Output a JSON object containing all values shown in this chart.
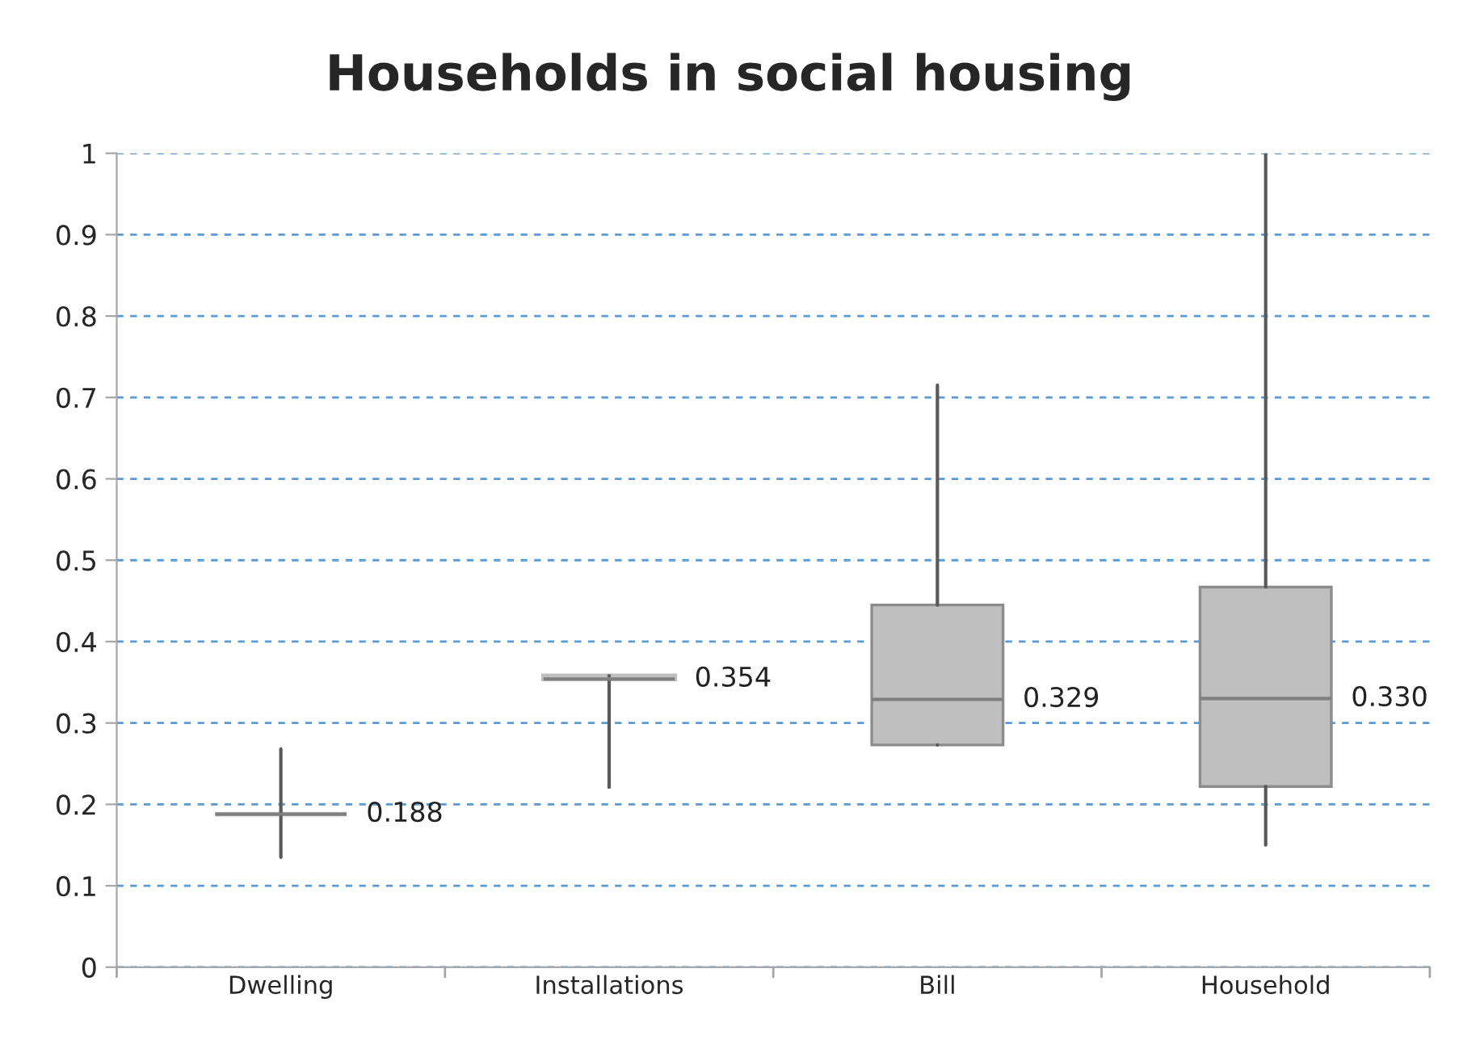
{
  "chart_data": {
    "type": "box",
    "title": "Households in social housing",
    "categories": [
      "Dwelling",
      "Installations",
      "Bill",
      "Household"
    ],
    "boxes": [
      {
        "low": 0.135,
        "q1": 0.188,
        "median": 0.188,
        "q3": 0.188,
        "high": 0.268
      },
      {
        "low": 0.221,
        "q1": 0.354,
        "median": 0.354,
        "q3": 0.358,
        "high": 0.358
      },
      {
        "low": 0.273,
        "q1": 0.273,
        "median": 0.329,
        "q3": 0.445,
        "high": 0.715
      },
      {
        "low": 0.15,
        "q1": 0.222,
        "median": 0.33,
        "q3": 0.467,
        "high": 1.0
      }
    ],
    "value_labels": [
      "0.188",
      "0.354",
      "0.329",
      "0.330"
    ],
    "color": "#bfbfbf",
    "ylim": [
      0,
      1
    ],
    "yticks": [
      0,
      0.1,
      0.2,
      0.3,
      0.4,
      0.5,
      0.6,
      0.7,
      0.8,
      0.9,
      1
    ],
    "grid": "y"
  }
}
